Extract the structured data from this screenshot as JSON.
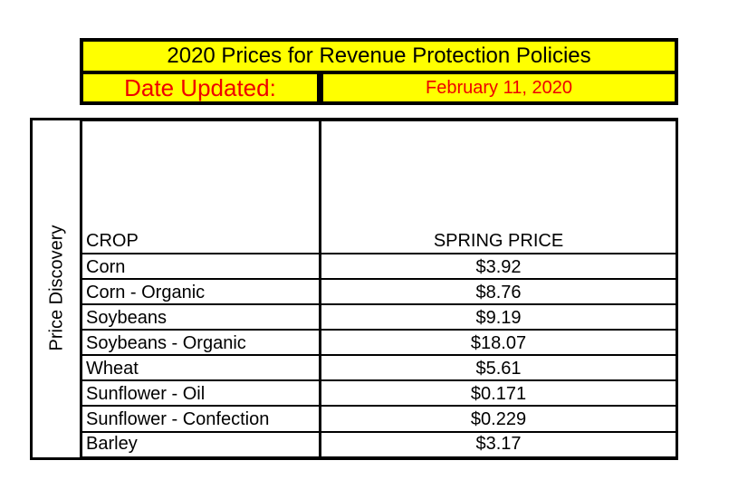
{
  "header": {
    "title": "2020 Prices for Revenue Protection Policies",
    "date_label": "Date Updated:",
    "date_value": "February 11, 2020"
  },
  "side_label": "Price Discovery",
  "table": {
    "columns": [
      "CROP",
      "SPRING PRICE"
    ],
    "rows": [
      {
        "crop": "Corn",
        "price": "$3.92"
      },
      {
        "crop": "Corn - Organic",
        "price": "$8.76"
      },
      {
        "crop": "Soybeans",
        "price": "$9.19"
      },
      {
        "crop": "Soybeans - Organic",
        "price": "$18.07"
      },
      {
        "crop": "Wheat",
        "price": "$5.61"
      },
      {
        "crop": "Sunflower - Oil",
        "price": "$0.171"
      },
      {
        "crop": "Sunflower - Confection",
        "price": "$0.229"
      },
      {
        "crop": "Barley",
        "price": "$3.17"
      }
    ]
  },
  "colors": {
    "header_fill": "#ffff00",
    "date_text": "#ee0000",
    "border": "#000000"
  }
}
